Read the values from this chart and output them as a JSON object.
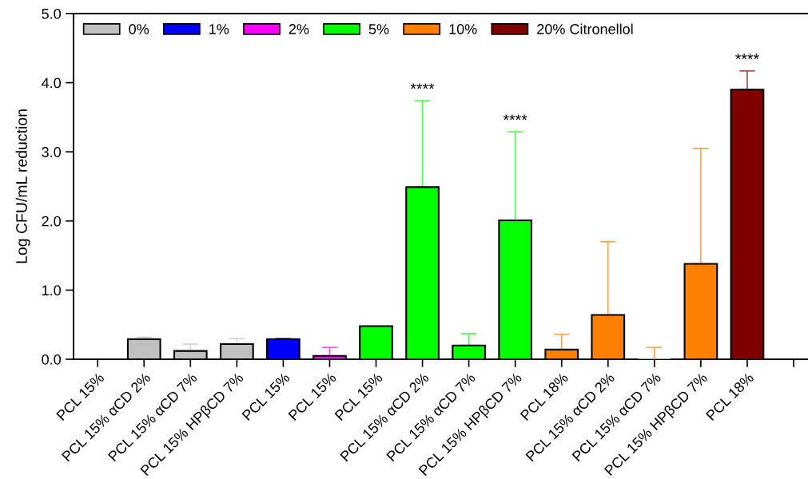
{
  "chart_data": {
    "type": "bar",
    "categories": [
      "PCL 15%",
      "PCL 15% αCD 2%",
      "PCL 15% αCD 7%",
      "PCL 15% HPβCD 7%",
      "PCL 15%",
      "PCL 15%",
      "PCL 15%",
      "PCL 15% αCD 2%",
      "PCL 15% αCD 7%",
      "PCL 15% HPβCD 7%",
      "PCL 18%",
      "PCL 15% αCD 2%",
      "PCL 15% αCD 7%",
      "PCL 15% HPβCD 7%",
      "PCL 18%",
      null
    ],
    "series": [
      {
        "name": "0%",
        "color": "#c0c0c0",
        "values": [
          null,
          0.29,
          0.12,
          0.22,
          null,
          null,
          null,
          null,
          null,
          null,
          null,
          null,
          null,
          null,
          null,
          null
        ],
        "errors": [
          null,
          [
            0.29,
            0.32
          ],
          [
            0.12,
            0.22
          ],
          [
            0.22,
            0.3
          ],
          null,
          null,
          null,
          null,
          null,
          null,
          null,
          null,
          null,
          null,
          null,
          null
        ]
      },
      {
        "name": "1%",
        "color": "#0000ff",
        "values": [
          null,
          null,
          null,
          null,
          0.29,
          null,
          null,
          null,
          null,
          null,
          null,
          null,
          null,
          null,
          null,
          null
        ],
        "errors": [
          null,
          null,
          null,
          null,
          [
            0.29,
            0.3
          ],
          null,
          null,
          null,
          null,
          null,
          null,
          null,
          null,
          null,
          null,
          null
        ]
      },
      {
        "name": "2%",
        "color": "#ff00ff",
        "values": [
          null,
          null,
          null,
          null,
          null,
          0.05,
          null,
          null,
          null,
          null,
          null,
          null,
          null,
          null,
          null,
          null
        ],
        "errors": [
          null,
          null,
          null,
          null,
          null,
          [
            0.05,
            0.17
          ],
          null,
          null,
          null,
          null,
          null,
          null,
          null,
          null,
          null,
          null
        ]
      },
      {
        "name": "5%",
        "color": "#00ff00",
        "values": [
          null,
          null,
          null,
          null,
          null,
          null,
          0.48,
          2.49,
          0.2,
          2.01,
          null,
          null,
          null,
          null,
          null,
          null
        ],
        "errors": [
          null,
          null,
          null,
          null,
          null,
          null,
          null,
          [
            2.49,
            3.74
          ],
          [
            0.2,
            0.37
          ],
          [
            2.01,
            3.29
          ],
          null,
          null,
          null,
          null,
          null,
          null
        ]
      },
      {
        "name": "10%",
        "color": "#ff8000",
        "values": [
          null,
          null,
          null,
          null,
          null,
          null,
          null,
          null,
          null,
          null,
          0.14,
          0.64,
          0,
          1.38,
          null,
          null
        ],
        "errors": [
          null,
          null,
          null,
          null,
          null,
          null,
          null,
          null,
          null,
          null,
          [
            0.14,
            0.36
          ],
          [
            0.64,
            1.7
          ],
          [
            0,
            0.17
          ],
          [
            1.38,
            3.05
          ],
          null,
          null
        ]
      },
      {
        "name": "20% Citronellol",
        "color": "#800000",
        "values": [
          null,
          null,
          null,
          null,
          null,
          null,
          null,
          null,
          null,
          null,
          null,
          null,
          null,
          null,
          3.9,
          null
        ],
        "errors": [
          null,
          null,
          null,
          null,
          null,
          null,
          null,
          null,
          null,
          null,
          null,
          null,
          null,
          null,
          [
            3.9,
            4.17
          ],
          null
        ]
      }
    ],
    "ylabel": "Log CFU/mL reduction",
    "ylim": [
      0,
      5
    ],
    "yticks": [
      {
        "value": 0,
        "label": "0.0"
      },
      {
        "value": 1,
        "label": "1.0"
      },
      {
        "value": 2,
        "label": "2.0"
      },
      {
        "value": 3,
        "label": "3.0"
      },
      {
        "value": 4,
        "label": "4.0"
      },
      {
        "value": 5,
        "label": "5.0"
      }
    ],
    "annotations": [
      "****",
      "****",
      "****"
    ],
    "legend": "top left"
  }
}
